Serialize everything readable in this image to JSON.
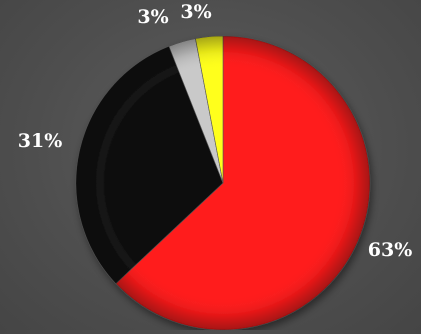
{
  "chart_data": {
    "type": "pie",
    "title": "",
    "slices": [
      {
        "label": "63%",
        "value": 63,
        "color": "#ff1a1a"
      },
      {
        "label": "31%",
        "value": 31,
        "color": "#0d0d0d"
      },
      {
        "label": "3%",
        "value": 3,
        "color": "#c9c9c9"
      },
      {
        "label": "3%",
        "value": 3,
        "color": "#ffff1a"
      }
    ],
    "legend": "none",
    "style": "3d-bevel"
  }
}
